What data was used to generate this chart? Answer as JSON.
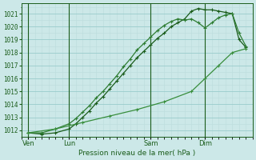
{
  "title": "Pression niveau de la mer( hPa )",
  "bg_color": "#cce8e8",
  "grid_color_major": "#99cccc",
  "grid_color_minor": "#bbdddd",
  "line_color1": "#1a5c1a",
  "line_color2": "#2e7d32",
  "line_color3": "#388e3c",
  "ylim": [
    1011.5,
    1021.8
  ],
  "yticks": [
    1012,
    1013,
    1014,
    1015,
    1016,
    1017,
    1018,
    1019,
    1020,
    1021
  ],
  "xlim": [
    -0.5,
    16.5
  ],
  "xtick_positions": [
    0,
    3,
    9,
    13
  ],
  "xtick_labels": [
    "Ven",
    "Lun",
    "Sam",
    "Dim"
  ],
  "vlines": [
    0,
    3,
    9,
    13
  ],
  "series1_x": [
    0,
    1,
    2,
    3,
    3.5,
    4,
    4.5,
    5,
    5.5,
    6,
    6.5,
    7,
    7.5,
    8,
    8.5,
    9,
    9.5,
    10,
    10.5,
    11,
    11.5,
    12,
    12.5,
    13,
    13.5,
    14,
    14.5,
    15,
    15.5,
    16
  ],
  "series1_y": [
    1011.8,
    1011.7,
    1011.8,
    1012.1,
    1012.5,
    1013.0,
    1013.5,
    1014.1,
    1014.6,
    1015.2,
    1015.8,
    1016.4,
    1017.0,
    1017.6,
    1018.1,
    1018.6,
    1019.1,
    1019.5,
    1020.0,
    1020.3,
    1020.6,
    1021.2,
    1021.4,
    1021.3,
    1021.3,
    1021.2,
    1021.1,
    1021.0,
    1019.0,
    1018.4
  ],
  "series2_x": [
    0,
    1,
    2,
    3,
    3.5,
    4,
    4.5,
    5,
    5.5,
    6,
    6.5,
    7,
    7.5,
    8,
    8.5,
    9,
    9.5,
    10,
    10.5,
    11,
    11.5,
    12,
    12.5,
    13,
    13.5,
    14,
    14.5,
    15,
    15.5,
    16
  ],
  "series2_y": [
    1011.8,
    1011.8,
    1012.1,
    1012.5,
    1012.9,
    1013.4,
    1013.9,
    1014.5,
    1015.0,
    1015.6,
    1016.2,
    1016.9,
    1017.5,
    1018.2,
    1018.7,
    1019.2,
    1019.7,
    1020.1,
    1020.4,
    1020.6,
    1020.5,
    1020.6,
    1020.3,
    1019.9,
    1020.3,
    1020.7,
    1020.9,
    1021.0,
    1019.5,
    1018.5
  ],
  "series3_x": [
    0,
    2,
    4,
    6,
    8,
    10,
    12,
    13,
    14,
    15,
    16
  ],
  "series3_y": [
    1011.8,
    1012.1,
    1012.6,
    1013.1,
    1013.6,
    1014.2,
    1015.0,
    1016.0,
    1017.0,
    1018.0,
    1018.3
  ]
}
